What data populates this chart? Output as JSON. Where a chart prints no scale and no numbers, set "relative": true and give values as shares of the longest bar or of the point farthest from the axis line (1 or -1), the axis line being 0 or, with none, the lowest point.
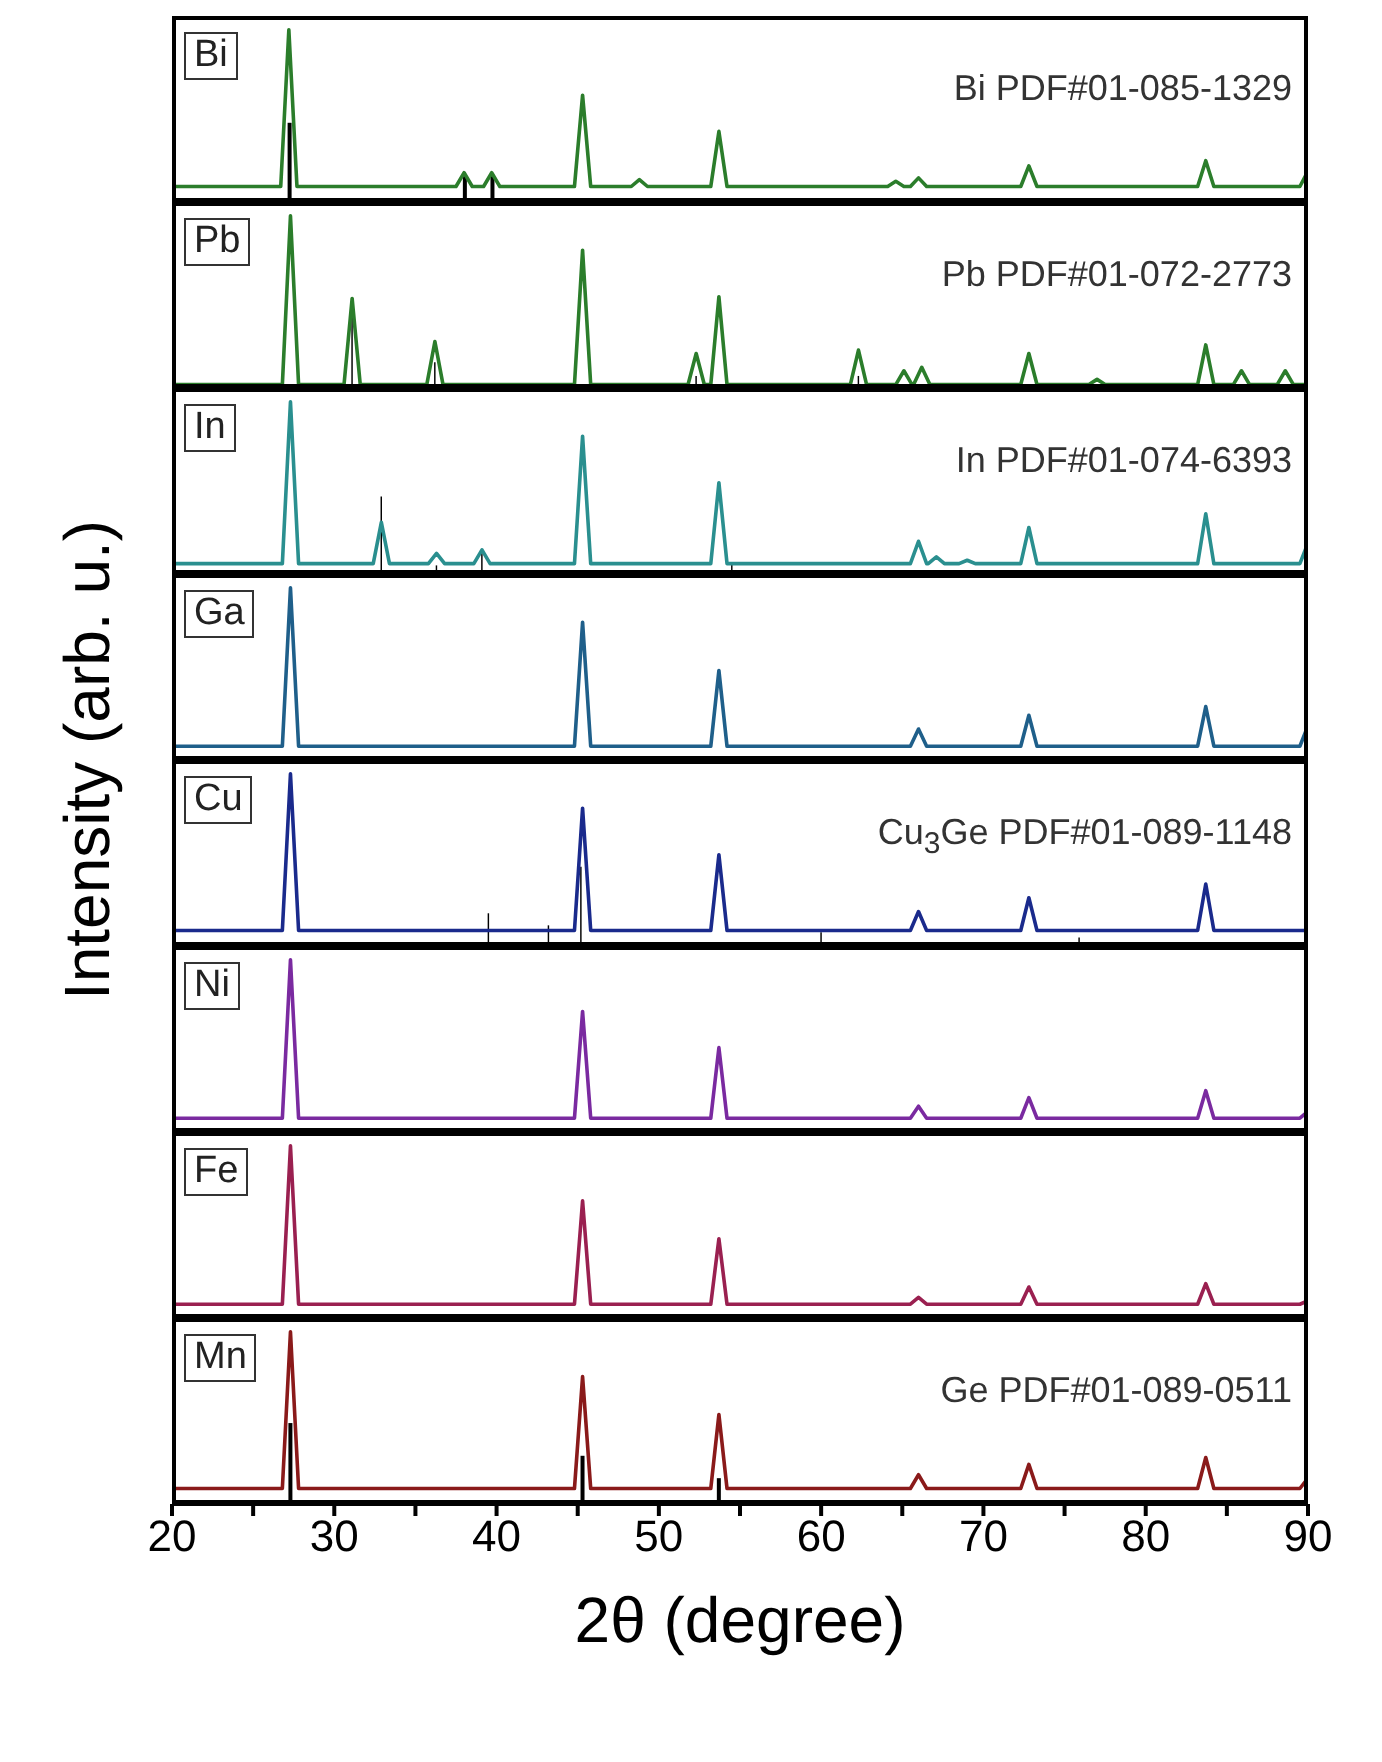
{
  "chart_data": [
    {
      "type": "line",
      "relative": true,
      "xlim": [
        20,
        90
      ],
      "tick_labels": false,
      "annotations": [
        "Bi PDF#01-085-1329"
      ],
      "series": [
        {
          "name": "Bi",
          "color": "#2b7d2b",
          "x": [
            20,
            26.7,
            27.2,
            27.7,
            37.5,
            38.0,
            38.5,
            39.2,
            39.7,
            40.2,
            44.8,
            45.3,
            45.8,
            48.3,
            48.8,
            49.3,
            53.2,
            53.7,
            54.2,
            64.1,
            64.6,
            65.1,
            65.5,
            66.0,
            66.5,
            72.3,
            72.8,
            73.3,
            83.2,
            83.7,
            84.2,
            89.5,
            90
          ],
          "values": [
            0.09,
            0.09,
            1,
            0.09,
            0.09,
            0.17,
            0.09,
            0.09,
            0.17,
            0.09,
            0.09,
            0.62,
            0.09,
            0.09,
            0.13,
            0.09,
            0.09,
            0.41,
            0.09,
            0.09,
            0.12,
            0.09,
            0.09,
            0.14,
            0.09,
            0.09,
            0.21,
            0.09,
            0.09,
            0.24,
            0.09,
            0.09,
            0.18
          ]
        },
        {
          "type": "bar",
          "color": "#000000",
          "x": [
            27.2,
            38.0,
            39.7
          ],
          "values": [
            0.46,
            0.15,
            0.15
          ]
        }
      ]
    },
    {
      "type": "line",
      "relative": true,
      "xlim": [
        20,
        90
      ],
      "tick_labels": false,
      "annotations": [
        "Pb PDF#01-072-2773"
      ],
      "series": [
        {
          "name": "Pb",
          "color": "#2b7d2b",
          "x": [
            20,
            26.8,
            27.3,
            27.8,
            30.6,
            31.1,
            31.6,
            35.7,
            36.2,
            36.7,
            44.8,
            45.3,
            45.8,
            51.8,
            52.3,
            52.8,
            53.2,
            53.7,
            54.2,
            61.8,
            62.3,
            62.8,
            64.6,
            65.1,
            65.6,
            65.7,
            66.2,
            66.7,
            72.3,
            72.8,
            73.3,
            76.5,
            77.0,
            77.5,
            83.2,
            83.7,
            84.2,
            85.4,
            85.9,
            86.4,
            88.1,
            88.6,
            89.1,
            90
          ],
          "values": [
            0.02,
            0.02,
            1,
            0.02,
            0.02,
            0.52,
            0.02,
            0.02,
            0.27,
            0.02,
            0.02,
            0.8,
            0.02,
            0.02,
            0.2,
            0.02,
            0.02,
            0.53,
            0.02,
            0.02,
            0.22,
            0.02,
            0.02,
            0.1,
            0.02,
            0.02,
            0.12,
            0.02,
            0.02,
            0.2,
            0.02,
            0.02,
            0.05,
            0.02,
            0.02,
            0.25,
            0.02,
            0.02,
            0.1,
            0.02,
            0.02,
            0.1,
            0.02,
            0.02
          ]
        },
        {
          "type": "bar",
          "color": "#000000",
          "x": [
            31.1,
            36.2,
            52.3,
            62.3
          ],
          "values": [
            0.41,
            0.15,
            0.07,
            0.07
          ]
        }
      ]
    },
    {
      "type": "line",
      "relative": true,
      "xlim": [
        20,
        90
      ],
      "tick_labels": false,
      "annotations": [
        "In PDF#01-074-6393"
      ],
      "series": [
        {
          "name": "In",
          "color": "#2a8f8f",
          "x": [
            20,
            26.8,
            27.3,
            27.8,
            32.4,
            32.9,
            33.4,
            35.8,
            36.3,
            36.8,
            38.6,
            39.1,
            39.6,
            44.8,
            45.3,
            45.8,
            53.2,
            53.7,
            54.2,
            65.5,
            66.0,
            66.5,
            66.6,
            67.1,
            67.6,
            68.5,
            69.0,
            69.5,
            72.3,
            72.8,
            73.3,
            83.2,
            83.7,
            84.2,
            89.5,
            90
          ],
          "values": [
            0.06,
            0.06,
            1,
            0.06,
            0.06,
            0.3,
            0.06,
            0.06,
            0.12,
            0.06,
            0.06,
            0.14,
            0.06,
            0.06,
            0.8,
            0.06,
            0.06,
            0.53,
            0.06,
            0.06,
            0.19,
            0.06,
            0.06,
            0.1,
            0.06,
            0.06,
            0.08,
            0.06,
            0.06,
            0.27,
            0.06,
            0.06,
            0.35,
            0.06,
            0.06,
            0.18
          ]
        },
        {
          "type": "bar",
          "color": "#000000",
          "x": [
            32.9,
            36.3,
            39.1,
            54.5
          ],
          "values": [
            0.45,
            0.05,
            0.12,
            0.06
          ]
        }
      ]
    },
    {
      "type": "line",
      "relative": true,
      "xlim": [
        20,
        90
      ],
      "tick_labels": false,
      "ylabel": "Intensity (arb. u.)",
      "series": [
        {
          "name": "Ga",
          "color": "#1f5f8a",
          "x": [
            20,
            26.8,
            27.3,
            27.8,
            44.8,
            45.3,
            45.8,
            53.2,
            53.7,
            54.2,
            65.5,
            66.0,
            66.5,
            72.3,
            72.8,
            73.3,
            83.2,
            83.7,
            84.2,
            89.5,
            90
          ],
          "values": [
            0.08,
            0.08,
            1,
            0.08,
            0.08,
            0.8,
            0.08,
            0.08,
            0.52,
            0.08,
            0.08,
            0.18,
            0.08,
            0.08,
            0.26,
            0.08,
            0.08,
            0.31,
            0.08,
            0.08,
            0.2
          ]
        }
      ]
    },
    {
      "type": "line",
      "relative": true,
      "xlim": [
        20,
        90
      ],
      "tick_labels": false,
      "annotations": [
        "Cu$_{3}$Ge PDF#01-089-1148"
      ],
      "series": [
        {
          "name": "Cu",
          "color": "#1a2a8c",
          "x": [
            20,
            26.8,
            27.3,
            27.8,
            44.8,
            45.3,
            45.8,
            53.2,
            53.7,
            54.2,
            65.5,
            66.0,
            66.5,
            72.3,
            72.8,
            73.3,
            83.2,
            83.7,
            84.2,
            89.5,
            90
          ],
          "values": [
            0.09,
            0.09,
            1,
            0.09,
            0.09,
            0.8,
            0.09,
            0.09,
            0.53,
            0.09,
            0.09,
            0.2,
            0.09,
            0.09,
            0.28,
            0.09,
            0.09,
            0.36,
            0.09,
            0.09,
            0.09
          ]
        },
        {
          "type": "bar",
          "color": "#000000",
          "x": [
            39.5,
            43.2,
            45.2,
            60.0,
            75.9
          ],
          "values": [
            0.19,
            0.12,
            0.46,
            0.08,
            0.05
          ]
        }
      ]
    },
    {
      "type": "line",
      "relative": true,
      "xlim": [
        20,
        90
      ],
      "tick_labels": false,
      "series": [
        {
          "name": "Ni",
          "color": "#7a2aa0",
          "x": [
            20,
            26.8,
            27.3,
            27.8,
            44.8,
            45.3,
            45.8,
            53.2,
            53.7,
            54.2,
            65.5,
            66.0,
            66.5,
            72.3,
            72.8,
            73.3,
            83.2,
            83.7,
            84.2,
            89.5,
            90
          ],
          "values": [
            0.08,
            0.08,
            1,
            0.08,
            0.08,
            0.7,
            0.08,
            0.08,
            0.49,
            0.08,
            0.08,
            0.15,
            0.08,
            0.08,
            0.2,
            0.08,
            0.08,
            0.24,
            0.08,
            0.08,
            0.12
          ]
        }
      ]
    },
    {
      "type": "line",
      "relative": true,
      "xlim": [
        20,
        90
      ],
      "tick_labels": false,
      "series": [
        {
          "name": "Fe",
          "color": "#9a2050",
          "x": [
            20,
            26.8,
            27.3,
            27.8,
            44.8,
            45.3,
            45.8,
            53.2,
            53.7,
            54.2,
            65.5,
            66.0,
            66.5,
            72.3,
            72.8,
            73.3,
            83.2,
            83.7,
            84.2,
            89.5,
            90
          ],
          "values": [
            0.08,
            0.08,
            1,
            0.08,
            0.08,
            0.68,
            0.08,
            0.08,
            0.46,
            0.08,
            0.08,
            0.12,
            0.08,
            0.08,
            0.18,
            0.08,
            0.08,
            0.2,
            0.08,
            0.08,
            0.1
          ]
        }
      ]
    },
    {
      "type": "line",
      "relative": true,
      "xlim": [
        20,
        90
      ],
      "tick_labels": "x",
      "xlabel": "2θ (degree)",
      "xticks": [
        20,
        {
          "value": 25,
          "label": null
        },
        30,
        {
          "value": 35,
          "label": null
        },
        40,
        {
          "value": 45,
          "label": null
        },
        50,
        {
          "value": 55,
          "label": null
        },
        60,
        {
          "value": 65,
          "label": null
        },
        70,
        {
          "value": 75,
          "label": null
        },
        80,
        {
          "value": 85,
          "label": null
        },
        90
      ],
      "annotations": [
        "Ge PDF#01-089-0511"
      ],
      "series": [
        {
          "name": "Mn",
          "color": "#8a1a1a",
          "x": [
            20,
            26.8,
            27.3,
            27.8,
            44.8,
            45.3,
            45.8,
            53.2,
            53.7,
            54.2,
            65.5,
            66.0,
            66.5,
            72.3,
            72.8,
            73.3,
            83.2,
            83.7,
            84.2,
            89.5,
            90
          ],
          "values": [
            0.09,
            0.09,
            1,
            0.09,
            0.09,
            0.74,
            0.09,
            0.09,
            0.52,
            0.09,
            0.09,
            0.17,
            0.09,
            0.09,
            0.23,
            0.09,
            0.09,
            0.27,
            0.09,
            0.09,
            0.15
          ]
        },
        {
          "type": "bar",
          "color": "#000000",
          "x": [
            27.3,
            45.3,
            53.7
          ],
          "values": [
            0.47,
            0.28,
            0.15
          ]
        }
      ]
    }
  ]
}
